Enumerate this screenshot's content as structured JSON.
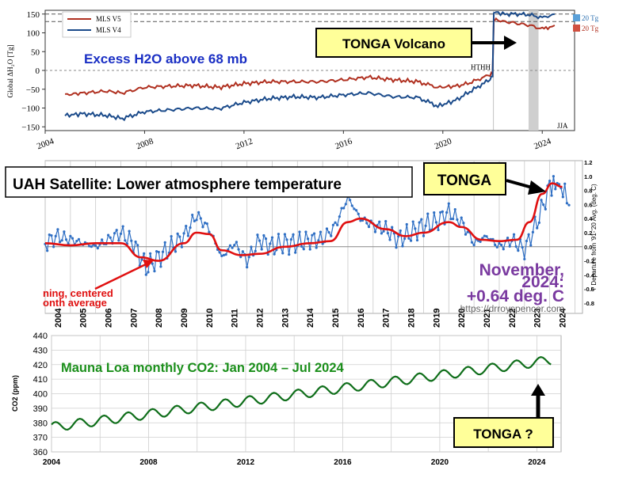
{
  "colors": {
    "mls_v5": "#b03020",
    "mls_v4": "#1a4a8a",
    "uah": "#2f6fc4",
    "uah_smooth": "#e01010",
    "co2": "#0f6e1a",
    "callout_fill": "#ffff99",
    "title_blue": "#1a2fc4",
    "title_green": "#1b8f1b",
    "annot_purple": "#7a3aa0"
  },
  "chart_data": [
    {
      "type": "line",
      "title": "Excess H2O above 68 mb",
      "ylabel": "Global ΔH₂O [Tg]",
      "xlim": [
        2004,
        2025.3
      ],
      "ylim": [
        -160,
        160
      ],
      "xticks": [
        "2004",
        "2008",
        "2012",
        "2016",
        "2020",
        "2024"
      ],
      "yticks": [
        "150",
        "100",
        "50",
        "0",
        "−50",
        "−100",
        "−150"
      ],
      "legend": [
        "MLS V5",
        "MLS V4"
      ],
      "legend_position": "top-left",
      "annotations": [
        "TONGA Volcano",
        "HTHH",
        "JJA"
      ],
      "scale_labels": [
        "20 Tg",
        "20 Tg"
      ],
      "series": [
        {
          "name": "MLS V5",
          "x": [
            2004.8,
            2005.5,
            2006.5,
            2007.1,
            2008.0,
            2009.0,
            2010.0,
            2011.0,
            2012.0,
            2013.0,
            2014.0,
            2015.0,
            2016.0,
            2017.0,
            2018.0,
            2019.0,
            2019.8,
            2020.5,
            2021.0,
            2021.5,
            2021.9,
            2022.0,
            2022.05,
            2022.5,
            2023.0,
            2023.5,
            2024.0,
            2024.3,
            2024.5
          ],
          "y": [
            -65,
            -60,
            -55,
            -60,
            -45,
            -42,
            -40,
            -45,
            -35,
            -30,
            -30,
            -30,
            -25,
            -18,
            -25,
            -30,
            -45,
            -42,
            -35,
            -22,
            -12,
            -10,
            135,
            130,
            125,
            120,
            110,
            115,
            120
          ]
        },
        {
          "name": "MLS V4",
          "x": [
            2004.8,
            2005.5,
            2006.5,
            2007.1,
            2008.0,
            2009.0,
            2010.0,
            2011.0,
            2012.0,
            2013.0,
            2014.0,
            2015.0,
            2016.0,
            2017.0,
            2018.0,
            2019.0,
            2019.8,
            2020.5,
            2021.0,
            2021.5,
            2021.9,
            2022.0,
            2022.05,
            2022.5,
            2023.0,
            2023.5,
            2024.0,
            2024.3,
            2024.5
          ],
          "y": [
            -120,
            -115,
            -120,
            -128,
            -110,
            -105,
            -100,
            -102,
            -85,
            -75,
            -70,
            -72,
            -65,
            -60,
            -70,
            -72,
            -95,
            -80,
            -60,
            -40,
            -25,
            -15,
            155,
            150,
            150,
            148,
            140,
            145,
            150
          ]
        }
      ]
    },
    {
      "type": "line",
      "title": "UAH Satellite: Lower atmosphere temperature",
      "ylabel": "T Departure from '91-'20 Avg. (deg. C)",
      "xlim": [
        2004,
        2025.3
      ],
      "ylim": [
        -0.8,
        1.2
      ],
      "xticks": [
        "2004",
        "2005",
        "2006",
        "2007",
        "2008",
        "2009",
        "2010",
        "2011",
        "2012",
        "2013",
        "2014",
        "2015",
        "2016",
        "2017",
        "2018",
        "2019",
        "2020",
        "2021",
        "2022",
        "2023",
        "2024"
      ],
      "yticks": [
        "1.2",
        "1.0",
        "0.8",
        "0.6",
        "0.4",
        "0.2",
        "0.0",
        "-0.2",
        "-0.4",
        "-0.6",
        "-0.8"
      ],
      "annotations": [
        "TONGA",
        "November,",
        "2024:",
        "+0.64 deg. C",
        "ning, centered",
        "onth average",
        "https://drroyspencer.com"
      ],
      "series": [
        {
          "name": "monthly",
          "x": [
            2004.0,
            2004.5,
            2005.0,
            2005.5,
            2006.0,
            2006.5,
            2007.0,
            2007.5,
            2008.0,
            2008.5,
            2009.0,
            2009.5,
            2010.0,
            2010.5,
            2011.0,
            2011.5,
            2012.0,
            2012.5,
            2013.0,
            2013.5,
            2014.0,
            2014.5,
            2015.0,
            2015.5,
            2016.0,
            2016.5,
            2017.0,
            2017.5,
            2018.0,
            2018.5,
            2019.0,
            2019.5,
            2020.0,
            2020.5,
            2021.0,
            2021.5,
            2022.0,
            2022.5,
            2023.0,
            2023.5,
            2024.0,
            2024.3,
            2024.6,
            2024.85
          ],
          "y": [
            0.05,
            0.15,
            0.1,
            0.05,
            0.0,
            0.1,
            0.2,
            0.05,
            -0.3,
            -0.15,
            0.0,
            0.15,
            0.45,
            0.25,
            -0.15,
            0.05,
            -0.2,
            0.1,
            0.0,
            0.05,
            0.05,
            0.1,
            0.1,
            0.3,
            0.7,
            0.4,
            0.3,
            0.25,
            0.1,
            0.2,
            0.3,
            0.35,
            0.5,
            0.35,
            0.05,
            0.15,
            0.0,
            0.1,
            -0.05,
            0.35,
            0.85,
            0.9,
            0.75,
            0.64
          ]
        },
        {
          "name": "running average",
          "x": [
            2004.0,
            2005.0,
            2006.0,
            2007.0,
            2007.8,
            2008.5,
            2009.5,
            2010.0,
            2010.5,
            2011.0,
            2011.8,
            2012.5,
            2013.5,
            2014.5,
            2015.3,
            2016.0,
            2016.5,
            2017.5,
            2018.3,
            2019.0,
            2020.0,
            2020.5,
            2021.3,
            2022.0,
            2022.7,
            2023.2,
            2023.7,
            2024.1,
            2024.5
          ],
          "y": [
            0.05,
            0.02,
            0.05,
            0.05,
            -0.15,
            -0.2,
            0.05,
            0.2,
            0.18,
            -0.05,
            -0.12,
            -0.1,
            0.0,
            0.05,
            0.08,
            0.35,
            0.4,
            0.25,
            0.15,
            0.2,
            0.35,
            0.28,
            0.1,
            0.08,
            0.1,
            0.35,
            0.75,
            0.9,
            0.85
          ]
        }
      ]
    },
    {
      "type": "line",
      "title": "Mauna Loa monthly CO2:  Jan 2004 – Jul 2024",
      "ylabel": "CO2 (ppm)",
      "xlim": [
        2004,
        2025
      ],
      "ylim": [
        360,
        440
      ],
      "xticks": [
        "2004",
        "2008",
        "2012",
        "2016",
        "2020",
        "2024"
      ],
      "yticks": [
        "440",
        "430",
        "420",
        "410",
        "400",
        "390",
        "380",
        "370",
        "360"
      ],
      "annotations": [
        "TONGA ?"
      ],
      "series": [
        {
          "name": "CO2",
          "trend_start": 377,
          "trend_end": 423,
          "seasonal_amplitude": 3.2,
          "x_start": 2004,
          "x_end": 2024.6
        }
      ]
    }
  ]
}
